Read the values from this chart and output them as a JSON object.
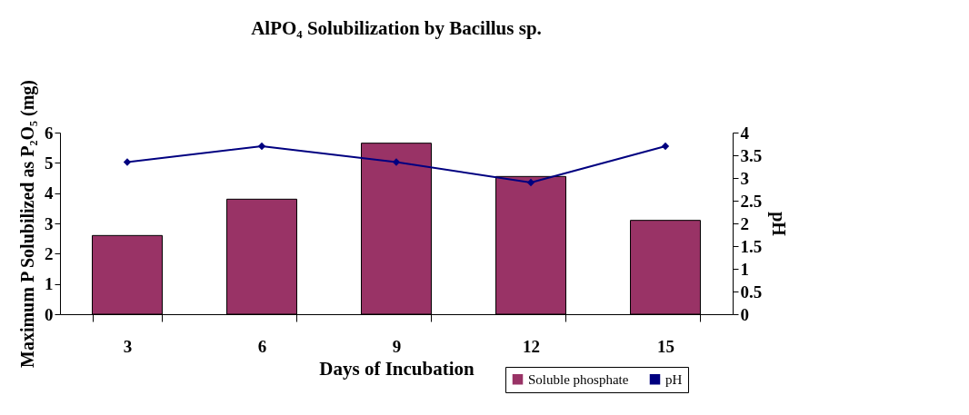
{
  "chart_data": {
    "type": "bar",
    "title": "AlPO₄ Solubilization by Bacillus sp.",
    "xlabel": "Days of Incubation",
    "ylabel": "Maximum P Solubilized as P₂O₅ (mg)",
    "y2label": "pH",
    "categories": [
      "3",
      "6",
      "9",
      "12",
      "15"
    ],
    "series": [
      {
        "name": "Soluble phosphate",
        "color": "#993366",
        "values": [
          2.6,
          3.8,
          5.65,
          4.55,
          3.1
        ]
      },
      {
        "name": "pH",
        "type": "line",
        "axis": "y2",
        "color": "#000080",
        "values": [
          3.35,
          3.7,
          3.35,
          2.9,
          3.7
        ]
      }
    ],
    "ylim": [
      0,
      6
    ],
    "yticks": [
      0,
      1,
      2,
      3,
      4,
      5,
      6
    ],
    "y2lim": [
      0,
      4
    ],
    "y2ticks": [
      0,
      0.5,
      1,
      1.5,
      2,
      2.5,
      3,
      3.5,
      4
    ],
    "grid": false,
    "legend": "bottom right",
    "marker": "diamond",
    "line_style": "solid"
  }
}
